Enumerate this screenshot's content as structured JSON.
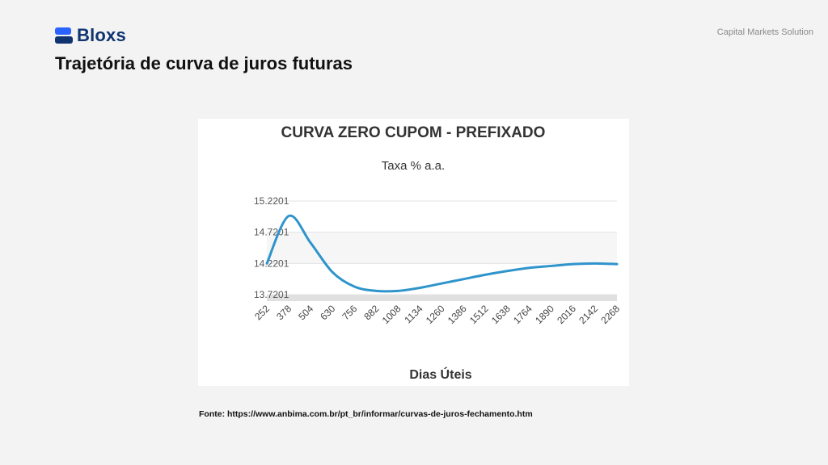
{
  "brand": {
    "name": "Bloxs",
    "tagline": "Capital Markets Solution",
    "color": "#0f3470",
    "accent": "#2962ff"
  },
  "page": {
    "title": "Trajetória de curva de juros futuras",
    "source": "Fonte: https://www.anbima.com.br/pt_br/informar/curvas-de-juros-fechamento.htm"
  },
  "chart_data": {
    "type": "line",
    "title": "CURVA ZERO CUPOM - PREFIXADO",
    "subtitle": "Taxa % a.a.",
    "xlabel": "Dias Úteis",
    "ylabel": "",
    "x": [
      252,
      378,
      504,
      630,
      756,
      882,
      1008,
      1134,
      1260,
      1386,
      1512,
      1638,
      1764,
      1890,
      2016,
      2142,
      2268
    ],
    "values": [
      14.22,
      14.98,
      14.55,
      14.08,
      13.85,
      13.78,
      13.78,
      13.83,
      13.9,
      13.97,
      14.04,
      14.1,
      14.15,
      14.18,
      14.21,
      14.22,
      14.21
    ],
    "y_ticks": [
      "15.2201",
      "14.7201",
      "14.2201",
      "13.7201"
    ],
    "ylim": [
      13.7201,
      15.2201
    ],
    "grid": true,
    "line_color": "#2f94cc"
  }
}
